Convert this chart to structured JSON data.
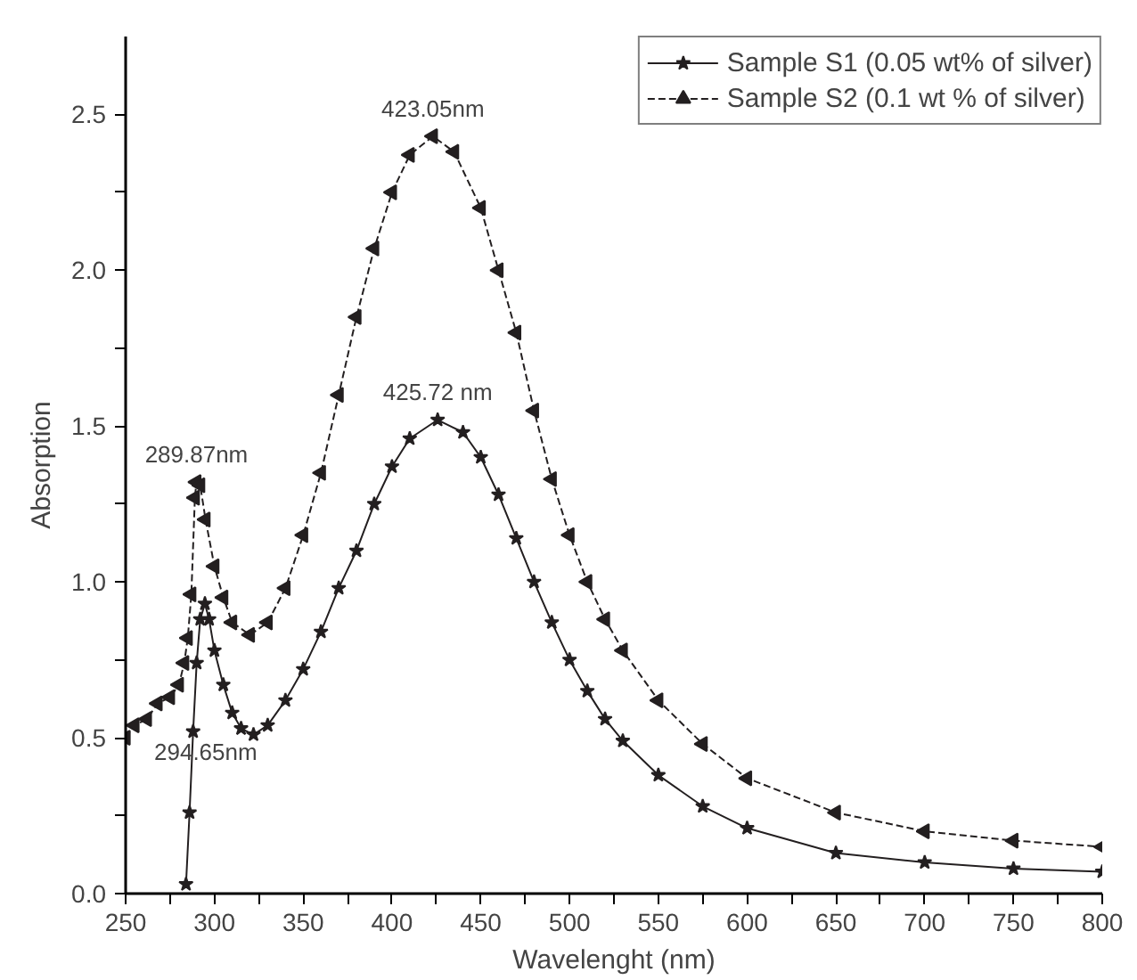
{
  "chart_data": {
    "type": "line",
    "xlabel": "Wavelenght (nm)",
    "ylabel": "Absorption",
    "xlim": [
      250,
      800
    ],
    "ylim": [
      0,
      2.75
    ],
    "xticks": [
      250,
      {
        "value": 275,
        "label": null
      },
      300,
      {
        "value": 325,
        "label": null
      },
      350,
      {
        "value": 375,
        "label": null
      },
      400,
      {
        "value": 425,
        "label": null
      },
      450,
      {
        "value": 475,
        "label": null
      },
      500,
      {
        "value": 525,
        "label": null
      },
      550,
      {
        "value": 575,
        "label": null
      },
      600,
      {
        "value": 625,
        "label": null
      },
      650,
      {
        "value": 675,
        "label": null
      },
      700,
      {
        "value": 725,
        "label": null
      },
      750,
      {
        "value": 775,
        "label": null
      },
      800
    ],
    "yticks": [
      {
        "value": 0,
        "label": "0.0"
      },
      {
        "value": 0.25,
        "label": null
      },
      {
        "value": 0.5,
        "label": "0.5"
      },
      {
        "value": 0.75,
        "label": null
      },
      {
        "value": 1,
        "label": "1.0"
      },
      {
        "value": 1.25,
        "label": null
      },
      {
        "value": 1.5,
        "label": "1.5"
      },
      {
        "value": 1.75,
        "label": null
      },
      {
        "value": 2,
        "label": "2.0"
      },
      {
        "value": 2.25,
        "label": null
      },
      {
        "value": 2.5,
        "label": "2.5"
      }
    ],
    "grid": false,
    "legend": "top right",
    "series": [
      {
        "name": "Sample S1 (0.05 wt% of silver)",
        "color": "#231f20",
        "marker": "star",
        "line_style": "solid",
        "x": [
          284,
          286,
          288,
          290,
          292,
          294.65,
          297,
          300,
          305,
          310,
          315,
          322,
          330,
          340,
          350,
          360,
          370,
          380,
          390,
          400,
          410,
          425.72,
          440,
          450,
          460,
          470,
          480,
          490,
          500,
          510,
          520,
          530,
          550,
          575,
          600,
          650,
          700,
          750,
          800
        ],
        "values": [
          0.03,
          0.26,
          0.52,
          0.74,
          0.88,
          0.93,
          0.88,
          0.78,
          0.67,
          0.58,
          0.53,
          0.51,
          0.54,
          0.62,
          0.72,
          0.84,
          0.98,
          1.1,
          1.25,
          1.37,
          1.46,
          1.52,
          1.48,
          1.4,
          1.28,
          1.14,
          1.0,
          0.87,
          0.75,
          0.65,
          0.56,
          0.49,
          0.38,
          0.28,
          0.21,
          0.13,
          0.1,
          0.08,
          0.07
        ]
      },
      {
        "name": "Sample S2 (0.1 wt % of silver)",
        "color": "#231f20",
        "marker": "triangle",
        "line_style": "dashed",
        "x": [
          250,
          255,
          262,
          268,
          275,
          280,
          283,
          285,
          287,
          289,
          289.87,
          292,
          295,
          300,
          305,
          310,
          320,
          330,
          340,
          350,
          360,
          370,
          380,
          390,
          400,
          410,
          423.05,
          435,
          450,
          460,
          470,
          480,
          490,
          500,
          510,
          520,
          530,
          550,
          575,
          600,
          650,
          700,
          750,
          800
        ],
        "values": [
          0.5,
          0.54,
          0.56,
          0.61,
          0.63,
          0.67,
          0.74,
          0.82,
          0.96,
          1.27,
          1.32,
          1.31,
          1.2,
          1.05,
          0.95,
          0.87,
          0.83,
          0.87,
          0.98,
          1.15,
          1.35,
          1.6,
          1.85,
          2.07,
          2.25,
          2.37,
          2.43,
          2.38,
          2.2,
          2.0,
          1.8,
          1.55,
          1.33,
          1.15,
          1.0,
          0.88,
          0.78,
          0.62,
          0.48,
          0.37,
          0.26,
          0.2,
          0.17,
          0.15
        ]
      }
    ],
    "annotations": [
      {
        "text": "423.05nm",
        "x": 423.05,
        "y": 2.43
      },
      {
        "text": "425.72 nm",
        "x": 425.72,
        "y": 1.52
      },
      {
        "text": "289.87nm",
        "x": 289.87,
        "y": 1.32
      },
      "294.65nm"
    ]
  }
}
